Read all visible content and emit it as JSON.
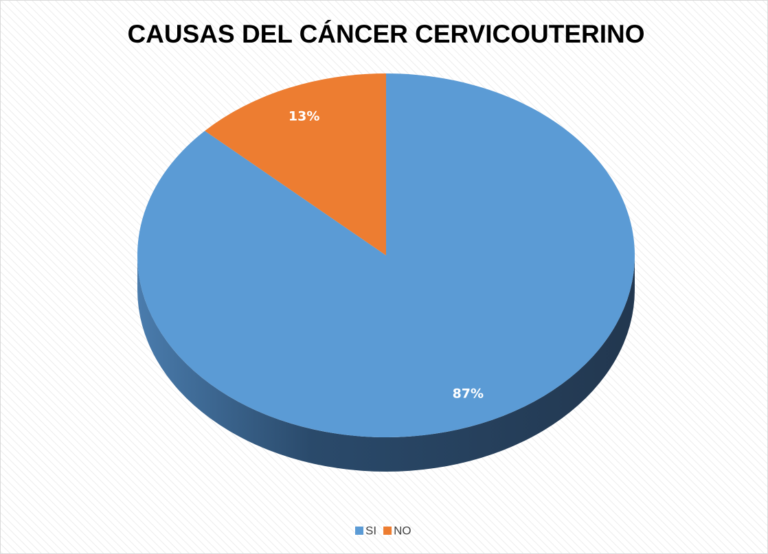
{
  "chart_data": {
    "type": "pie",
    "title": "CAUSAS DEL CÁNCER CERVICOUTERINO",
    "categories": [
      "SI",
      "NO"
    ],
    "values": [
      87,
      13
    ],
    "value_labels": [
      "87%",
      "13%"
    ],
    "colors": [
      "#5b9bd5",
      "#ed7d31"
    ],
    "legend": "bottom"
  }
}
